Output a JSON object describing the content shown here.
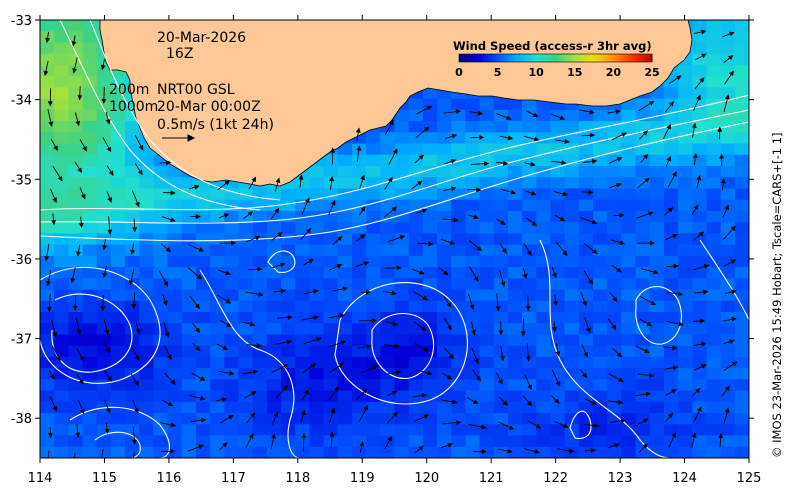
{
  "header": {
    "date": "20-Mar-2026",
    "hour": "16Z",
    "depth_line_1": "200m",
    "depth_line_2": "1000m",
    "product_line_1": "NRT00 GSL",
    "product_line_2": "20-Mar 00:00Z",
    "scale_label": "0.5m/s (1kt 24h)"
  },
  "colorbar": {
    "title": "Wind Speed (access-r 3hr avg)",
    "ticks": [
      "0",
      "5",
      "10",
      "15",
      "20",
      "25"
    ],
    "min": 0,
    "max": 25,
    "colors": [
      "#000080",
      "#0000d8",
      "#0050ff",
      "#00b0ff",
      "#20e0d0",
      "#40d080",
      "#a0e040",
      "#f0e000",
      "#ff9000",
      "#ff3000",
      "#c00000"
    ]
  },
  "credit": "© IMOS 23-Mar-2026 15:49 Hobart; Tscale=CARS+[-1 1]",
  "axes": {
    "x_ticks": [
      "114",
      "115",
      "116",
      "117",
      "118",
      "119",
      "120",
      "121",
      "122",
      "123",
      "124",
      "125"
    ],
    "y_ticks": [
      "-33",
      "-34",
      "-35",
      "-36",
      "-37",
      "-38"
    ],
    "lon_range": [
      114,
      125
    ],
    "lat_range": [
      -38.5,
      -33
    ]
  },
  "colors": {
    "land": "#fdc896",
    "coast": "#000000",
    "contour": "#ffffff",
    "arrow": "#000000",
    "label": "#000000"
  }
}
